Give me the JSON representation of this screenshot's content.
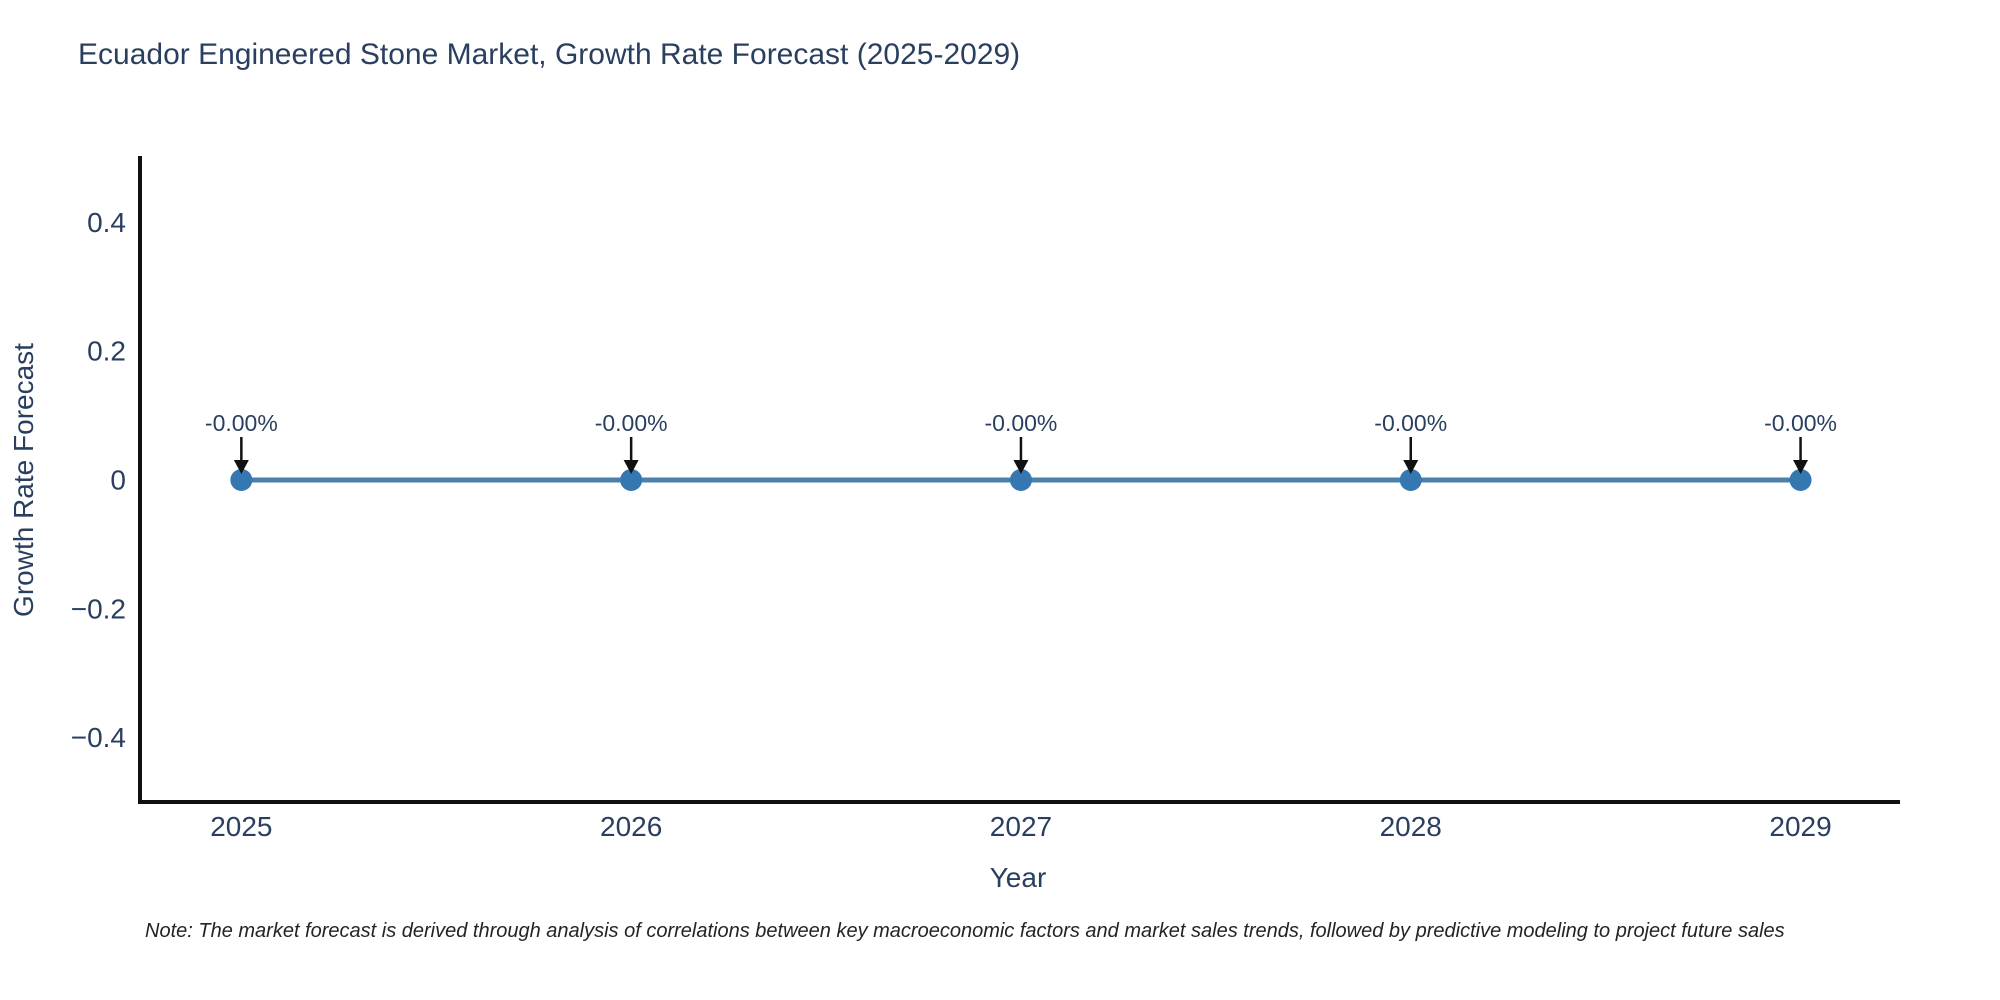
{
  "note": "Note: The market forecast is derived through analysis of correlations between key macroeconomic factors and market sales trends, followed by predictive modeling to project future sales",
  "chart_data": {
    "type": "line",
    "title": "Ecuador Engineered Stone Market, Growth Rate Forecast (2025-2029)",
    "xlabel": "Year",
    "ylabel": "Growth Rate Forecast",
    "x": [
      2025,
      2026,
      2027,
      2028,
      2029
    ],
    "y": [
      0,
      0,
      0,
      0,
      0
    ],
    "point_labels": [
      "-0.00%",
      "-0.00%",
      "-0.00%",
      "-0.00%",
      "-0.00%"
    ],
    "xticks": [
      2025,
      2026,
      2027,
      2028,
      2029
    ],
    "yticks": [
      0.4,
      0.2,
      0,
      -0.2,
      -0.4
    ],
    "xlim": [
      2024.74,
      2029.25
    ],
    "ylim": [
      -0.5,
      0.5
    ],
    "grid": false,
    "legend": "none",
    "line_color": "#4c80a8",
    "marker_color": "#3577b1",
    "axis_color": "#111111",
    "arrow_color": "#111111",
    "text_color": "#2a3f5f"
  }
}
